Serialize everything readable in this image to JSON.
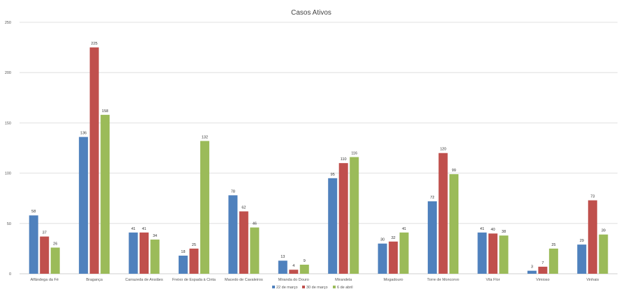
{
  "chart_data": {
    "type": "bar",
    "title": "Casos Ativos",
    "xlabel": "",
    "ylabel": "",
    "ylim": [
      0,
      250
    ],
    "yticks": [
      0,
      50,
      100,
      150,
      200,
      250
    ],
    "grid": true,
    "legend_position": "bottom",
    "categories": [
      "Alfândega da Fé",
      "Bragança",
      "Carrazeda de Ansiães",
      "Freixo de Espada à Cinta",
      "Macedo de Cavaleiros",
      "Miranda do Douro",
      "Mirandela",
      "Mogadouro",
      "Torre de Moncorvo",
      "Vila Flor",
      "Vimioso",
      "Vinhais"
    ],
    "series": [
      {
        "name": "22 de março",
        "color": "#4f81bd",
        "values": [
          58,
          136,
          41,
          18,
          78,
          13,
          95,
          30,
          72,
          41,
          3,
          29
        ]
      },
      {
        "name": "30 de março",
        "color": "#c0504d",
        "values": [
          37,
          225,
          41,
          25,
          62,
          4,
          110,
          32,
          120,
          40,
          7,
          73
        ]
      },
      {
        "name": "6 de abril",
        "color": "#9bbb59",
        "values": [
          26,
          158,
          34,
          132,
          46,
          9,
          116,
          41,
          99,
          38,
          25,
          39
        ]
      }
    ]
  }
}
